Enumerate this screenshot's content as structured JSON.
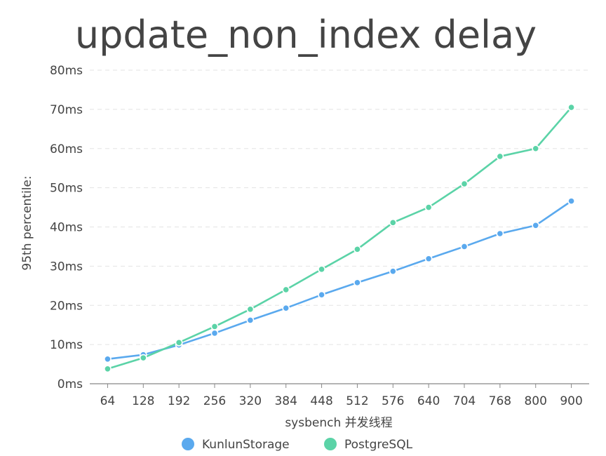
{
  "chart_data": {
    "type": "line",
    "title": "update_non_index delay",
    "xlabel": "sysbench 并发线程",
    "ylabel": "95th percentile:",
    "categories": [
      "64",
      "128",
      "192",
      "256",
      "320",
      "384",
      "448",
      "512",
      "576",
      "640",
      "704",
      "768",
      "800",
      "900"
    ],
    "ylim": [
      0,
      80
    ],
    "y_ticks": [
      "0ms",
      "10ms",
      "20ms",
      "30ms",
      "40ms",
      "50ms",
      "60ms",
      "70ms",
      "80ms"
    ],
    "grid": true,
    "legend_position": "bottom",
    "series": [
      {
        "name": "KunlunStorage",
        "color": "#5aa9ee",
        "values": [
          6.3,
          7.4,
          9.9,
          12.9,
          16.2,
          19.3,
          22.7,
          25.8,
          28.7,
          31.9,
          35.0,
          38.3,
          40.4,
          46.6
        ]
      },
      {
        "name": "PostgreSQL",
        "color": "#5bd3a7",
        "values": [
          3.8,
          6.6,
          10.5,
          14.6,
          19.0,
          24.0,
          29.2,
          34.3,
          41.1,
          45.0,
          51.0,
          58.0,
          60.0,
          70.5
        ]
      }
    ]
  }
}
